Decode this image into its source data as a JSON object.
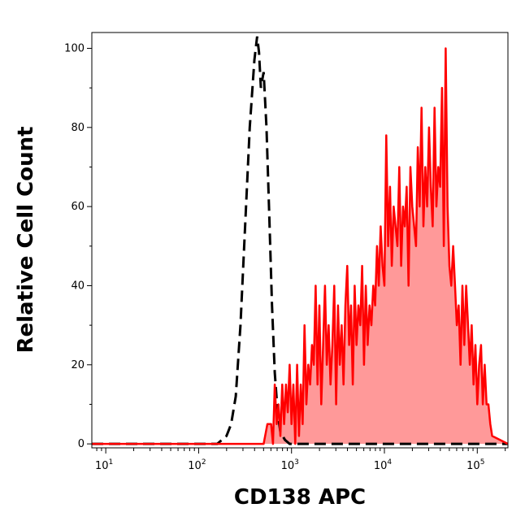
{
  "chart_data": {
    "type": "area",
    "xlabel": "CD138 APC",
    "ylabel": "Relative Cell Count",
    "x_scale": "log10",
    "xlim": [
      0.85,
      5.33
    ],
    "ylim": [
      -1,
      104
    ],
    "x_ticks": [
      {
        "base": "10",
        "exp": "1",
        "value": 1
      },
      {
        "base": "10",
        "exp": "2",
        "value": 2
      },
      {
        "base": "10",
        "exp": "3",
        "value": 3
      },
      {
        "base": "10",
        "exp": "4",
        "value": 4
      },
      {
        "base": "10",
        "exp": "5",
        "value": 5
      }
    ],
    "y_ticks": [
      {
        "label": "0",
        "value": 0
      },
      {
        "label": "20",
        "value": 20
      },
      {
        "label": "40",
        "value": 40
      },
      {
        "label": "60",
        "value": 60
      },
      {
        "label": "80",
        "value": 80
      },
      {
        "label": "100",
        "value": 100
      }
    ],
    "series": [
      {
        "style": "dashed",
        "color": "#000000",
        "x": [
          0.85,
          2.2,
          2.3,
          2.35,
          2.4,
          2.45,
          2.5,
          2.55,
          2.6,
          2.63,
          2.65,
          2.67,
          2.7,
          2.73,
          2.76,
          2.79,
          2.82,
          2.85,
          2.88,
          2.93,
          2.98,
          3.05,
          5.33
        ],
        "y": [
          0,
          0,
          2,
          5,
          12,
          30,
          55,
          80,
          97,
          103,
          99,
          90,
          94,
          80,
          58,
          35,
          18,
          8,
          3,
          1,
          0,
          0,
          0
        ]
      },
      {
        "style": "filled",
        "color": "#ff0000",
        "fill": "#ff9999",
        "x": [
          0.85,
          2.7,
          2.74,
          2.78,
          2.8,
          2.82,
          2.84,
          2.86,
          2.88,
          2.9,
          2.92,
          2.94,
          2.96,
          2.98,
          3.0,
          3.02,
          3.04,
          3.06,
          3.08,
          3.1,
          3.12,
          3.14,
          3.16,
          3.18,
          3.2,
          3.22,
          3.24,
          3.26,
          3.28,
          3.3,
          3.32,
          3.34,
          3.36,
          3.38,
          3.4,
          3.42,
          3.44,
          3.46,
          3.48,
          3.5,
          3.52,
          3.54,
          3.56,
          3.58,
          3.6,
          3.62,
          3.64,
          3.66,
          3.68,
          3.7,
          3.72,
          3.74,
          3.76,
          3.78,
          3.8,
          3.82,
          3.84,
          3.86,
          3.88,
          3.9,
          3.92,
          3.94,
          3.96,
          3.98,
          4.0,
          4.02,
          4.04,
          4.06,
          4.08,
          4.1,
          4.12,
          4.14,
          4.16,
          4.18,
          4.2,
          4.22,
          4.24,
          4.26,
          4.28,
          4.3,
          4.32,
          4.34,
          4.36,
          4.38,
          4.4,
          4.42,
          4.44,
          4.46,
          4.48,
          4.5,
          4.52,
          4.54,
          4.56,
          4.58,
          4.6,
          4.62,
          4.64,
          4.66,
          4.68,
          4.7,
          4.72,
          4.74,
          4.76,
          4.78,
          4.8,
          4.82,
          4.84,
          4.86,
          4.88,
          4.9,
          4.92,
          4.94,
          4.96,
          4.98,
          5.0,
          5.02,
          5.04,
          5.06,
          5.08,
          5.1,
          5.12,
          5.14,
          5.16,
          5.33
        ],
        "y": [
          0,
          0,
          5,
          5,
          0,
          15,
          5,
          10,
          2,
          15,
          5,
          15,
          8,
          20,
          5,
          15,
          0,
          20,
          2,
          15,
          5,
          30,
          10,
          20,
          15,
          25,
          20,
          40,
          15,
          35,
          10,
          25,
          40,
          20,
          30,
          15,
          25,
          40,
          10,
          35,
          20,
          30,
          15,
          35,
          45,
          25,
          35,
          15,
          40,
          25,
          35,
          30,
          45,
          20,
          40,
          25,
          35,
          30,
          40,
          35,
          50,
          40,
          55,
          45,
          40,
          78,
          50,
          65,
          45,
          60,
          55,
          50,
          70,
          45,
          60,
          55,
          65,
          40,
          70,
          60,
          55,
          50,
          75,
          60,
          85,
          55,
          70,
          60,
          80,
          65,
          55,
          85,
          60,
          70,
          65,
          90,
          50,
          100,
          60,
          45,
          40,
          50,
          40,
          30,
          35,
          20,
          40,
          25,
          40,
          30,
          20,
          30,
          15,
          25,
          10,
          20,
          25,
          10,
          20,
          10,
          10,
          5,
          2,
          0
        ]
      }
    ]
  }
}
